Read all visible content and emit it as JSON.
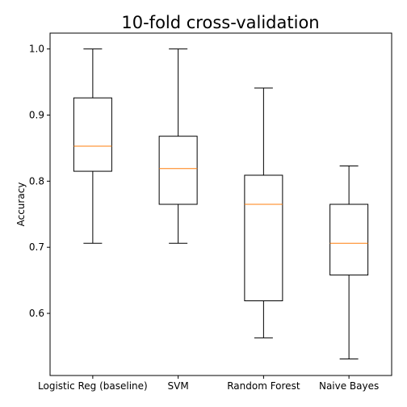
{
  "chart_data": {
    "type": "box",
    "title": "10-fold cross-validation",
    "xlabel": "",
    "ylabel": "Accuracy",
    "ylim": [
      0.506,
      1.024
    ],
    "y_ticks": [
      0.6,
      0.7,
      0.8,
      0.9,
      1.0
    ],
    "y_tick_labels": [
      "0.6",
      "0.7",
      "0.8",
      "0.9",
      "1.0"
    ],
    "grid": false,
    "median_color": "#ff7f0e",
    "box_color": "#000000",
    "categories": [
      "Logistic Reg (baseline)",
      "SVM",
      "Random Forest",
      "Naive Bayes"
    ],
    "boxes": [
      {
        "min": 0.706,
        "q1": 0.815,
        "median": 0.853,
        "q3": 0.926,
        "max": 1.0
      },
      {
        "min": 0.706,
        "q1": 0.765,
        "median": 0.819,
        "q3": 0.868,
        "max": 1.0
      },
      {
        "min": 0.563,
        "q1": 0.619,
        "median": 0.765,
        "q3": 0.809,
        "max": 0.941
      },
      {
        "min": 0.531,
        "q1": 0.658,
        "median": 0.706,
        "q3": 0.765,
        "max": 0.823
      }
    ]
  }
}
